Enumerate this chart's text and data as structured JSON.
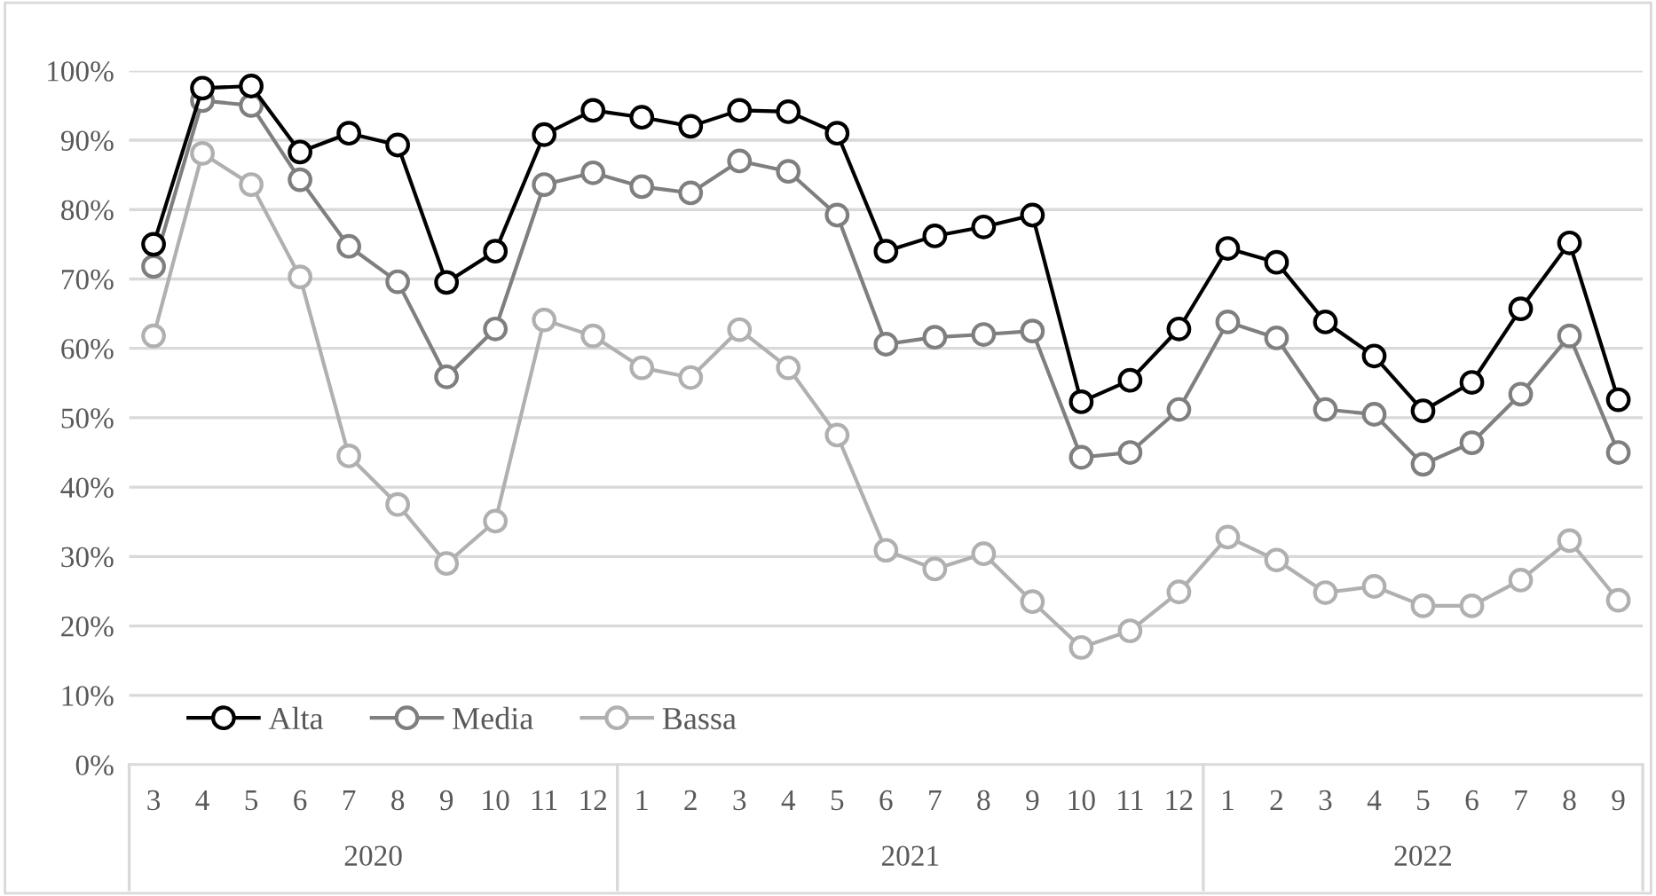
{
  "chart_data": {
    "type": "line",
    "categories": [
      "3",
      "4",
      "5",
      "6",
      "7",
      "8",
      "9",
      "10",
      "11",
      "12",
      "1",
      "2",
      "3",
      "4",
      "5",
      "6",
      "7",
      "8",
      "9",
      "10",
      "11",
      "12",
      "1",
      "2",
      "3",
      "4",
      "5",
      "6",
      "7",
      "8",
      "9"
    ],
    "annotations": [
      "2020",
      "2021",
      "2022"
    ],
    "series": [
      {
        "name": "Alta",
        "color": "#000000",
        "values": [
          75,
          97.5,
          97.8,
          88.3,
          91,
          89.3,
          69.5,
          74,
          90.8,
          94.3,
          93.3,
          92,
          94.3,
          94.1,
          91,
          74,
          76.2,
          77.5,
          79.2,
          52.3,
          55.4,
          62.8,
          74.4,
          72.4,
          63.8,
          58.9,
          51,
          55.1,
          65.7,
          75.2,
          52.6
        ]
      },
      {
        "name": "Media",
        "color": "#7f7f7f",
        "values": [
          71.8,
          95.7,
          95,
          84.3,
          74.7,
          69.6,
          55.9,
          62.8,
          83.6,
          85.3,
          83.3,
          82.4,
          87,
          85.5,
          79.2,
          60.6,
          61.6,
          62,
          62.5,
          44.3,
          45,
          51.2,
          63.8,
          61.5,
          51.2,
          50.5,
          43.3,
          46.4,
          53.4,
          61.8,
          45
        ]
      },
      {
        "name": "Bassa",
        "color": "#b0b0b0",
        "values": [
          61.8,
          88.1,
          83.6,
          70.3,
          44.5,
          37.5,
          29,
          35.1,
          64.1,
          61.8,
          57.2,
          55.8,
          62.7,
          57.2,
          47.5,
          30.9,
          28.2,
          30.4,
          23.5,
          16.9,
          19.3,
          24.9,
          32.8,
          29.5,
          24.8,
          25.7,
          22.9,
          22.9,
          26.6,
          32.3,
          23.7
        ]
      }
    ],
    "ylim": [
      0,
      100
    ],
    "yticks": [
      {
        "value": 0,
        "label": "0%"
      },
      {
        "value": 10,
        "label": "10%"
      },
      {
        "value": 20,
        "label": "20%"
      },
      {
        "value": 30,
        "label": "30%"
      },
      {
        "value": 40,
        "label": "40%"
      },
      {
        "value": 50,
        "label": "50%"
      },
      {
        "value": 60,
        "label": "60%"
      },
      {
        "value": 70,
        "label": "70%"
      },
      {
        "value": 80,
        "label": "80%"
      },
      {
        "value": 90,
        "label": "90%"
      },
      {
        "value": 100,
        "label": "100%"
      }
    ],
    "grid": "y",
    "legend": "bottom left",
    "marker": "circle",
    "line_style": "solid"
  }
}
